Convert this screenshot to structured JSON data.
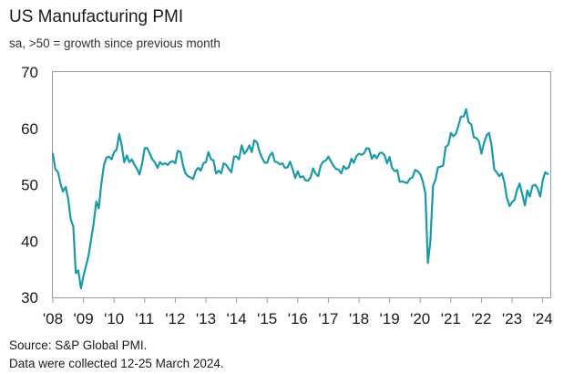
{
  "chart_data": {
    "type": "line",
    "title": "US Manufacturing PMI",
    "subtitle": "sa, >50 = growth since previous month",
    "xlabel": "",
    "ylabel": "",
    "ylim": [
      30,
      70
    ],
    "yticks": [
      30,
      40,
      50,
      60,
      70
    ],
    "xticks": [
      "'08",
      "'09",
      "'10",
      "'11",
      "'12",
      "'13",
      "'14",
      "'15",
      "'16",
      "'17",
      "'18",
      "'19",
      "'20",
      "'21",
      "'22",
      "'23",
      "'24"
    ],
    "xrange": [
      2008.0,
      2024.25
    ],
    "grid": false,
    "line_color": "#1a9aa8",
    "series": [
      {
        "name": "US Manufacturing PMI",
        "x": [
          2008.0,
          2008.08,
          2008.17,
          2008.25,
          2008.33,
          2008.42,
          2008.5,
          2008.58,
          2008.67,
          2008.75,
          2008.83,
          2008.92,
          2009.0,
          2009.08,
          2009.17,
          2009.25,
          2009.33,
          2009.42,
          2009.5,
          2009.58,
          2009.67,
          2009.75,
          2009.83,
          2009.92,
          2010.0,
          2010.08,
          2010.17,
          2010.25,
          2010.33,
          2010.42,
          2010.5,
          2010.58,
          2010.67,
          2010.75,
          2010.83,
          2010.92,
          2011.0,
          2011.08,
          2011.17,
          2011.25,
          2011.33,
          2011.42,
          2011.5,
          2011.58,
          2011.67,
          2011.75,
          2011.83,
          2011.92,
          2012.0,
          2012.08,
          2012.17,
          2012.25,
          2012.33,
          2012.42,
          2012.5,
          2012.58,
          2012.67,
          2012.75,
          2012.83,
          2012.92,
          2013.0,
          2013.08,
          2013.17,
          2013.25,
          2013.33,
          2013.42,
          2013.5,
          2013.58,
          2013.67,
          2013.75,
          2013.83,
          2013.92,
          2014.0,
          2014.08,
          2014.17,
          2014.25,
          2014.33,
          2014.42,
          2014.5,
          2014.58,
          2014.67,
          2014.75,
          2014.83,
          2014.92,
          2015.0,
          2015.08,
          2015.17,
          2015.25,
          2015.33,
          2015.42,
          2015.5,
          2015.58,
          2015.67,
          2015.75,
          2015.83,
          2015.92,
          2016.0,
          2016.08,
          2016.17,
          2016.25,
          2016.33,
          2016.42,
          2016.5,
          2016.58,
          2016.67,
          2016.75,
          2016.83,
          2016.92,
          2017.0,
          2017.08,
          2017.17,
          2017.25,
          2017.33,
          2017.42,
          2017.5,
          2017.58,
          2017.67,
          2017.75,
          2017.83,
          2017.92,
          2018.0,
          2018.08,
          2018.17,
          2018.25,
          2018.33,
          2018.42,
          2018.5,
          2018.58,
          2018.67,
          2018.75,
          2018.83,
          2018.92,
          2019.0,
          2019.08,
          2019.17,
          2019.25,
          2019.33,
          2019.42,
          2019.5,
          2019.58,
          2019.67,
          2019.75,
          2019.83,
          2019.92,
          2020.0,
          2020.08,
          2020.17,
          2020.25,
          2020.33,
          2020.42,
          2020.5,
          2020.58,
          2020.67,
          2020.75,
          2020.83,
          2020.92,
          2021.0,
          2021.08,
          2021.17,
          2021.25,
          2021.33,
          2021.42,
          2021.5,
          2021.58,
          2021.67,
          2021.75,
          2021.83,
          2021.92,
          2022.0,
          2022.08,
          2022.17,
          2022.25,
          2022.33,
          2022.42,
          2022.5,
          2022.58,
          2022.67,
          2022.75,
          2022.83,
          2022.92,
          2023.0,
          2023.08,
          2023.17,
          2023.25,
          2023.33,
          2023.42,
          2023.5,
          2023.58,
          2023.67,
          2023.75,
          2023.83,
          2023.92,
          2024.0,
          2024.08,
          2024.17
        ],
        "values": [
          55.5,
          52.8,
          52.2,
          50.2,
          48.8,
          49.6,
          47.5,
          44.0,
          42.5,
          34.3,
          34.8,
          31.6,
          33.8,
          35.5,
          37.5,
          40.3,
          43.0,
          47.0,
          45.8,
          50.0,
          53.5,
          54.8,
          55.0,
          54.5,
          55.8,
          56.2,
          59.0,
          57.0,
          54.0,
          55.2,
          54.0,
          54.5,
          53.5,
          52.8,
          51.8,
          53.8,
          56.5,
          56.5,
          55.5,
          54.5,
          54.0,
          53.0,
          54.0,
          53.6,
          53.8,
          53.5,
          54.0,
          54.2,
          53.8,
          56.0,
          55.8,
          53.5,
          52.0,
          51.5,
          51.3,
          51.0,
          52.5,
          53.0,
          52.5,
          53.8,
          54.0,
          55.8,
          54.5,
          54.3,
          52.0,
          52.5,
          52.0,
          53.8,
          53.5,
          52.8,
          52.2,
          55.0,
          55.0,
          54.5,
          57.0,
          55.5,
          56.0,
          57.0,
          55.8,
          57.9,
          57.5,
          55.9,
          54.8,
          53.9,
          53.9,
          55.1,
          55.7,
          54.1,
          54.0,
          53.6,
          53.8,
          53.0,
          53.1,
          54.1,
          52.8,
          51.2,
          52.4,
          51.3,
          51.5,
          50.8,
          50.7,
          51.3,
          52.9,
          52.0,
          51.5,
          53.4,
          54.1,
          54.3,
          55.0,
          54.2,
          53.3,
          52.8,
          52.7,
          52.0,
          53.3,
          52.8,
          53.1,
          54.6,
          53.9,
          55.1,
          55.5,
          55.3,
          55.6,
          56.5,
          56.4,
          54.6,
          55.3,
          54.7,
          55.6,
          55.7,
          55.3,
          53.8,
          54.9,
          53.0,
          52.4,
          52.6,
          50.5,
          50.6,
          50.4,
          50.3,
          51.1,
          51.3,
          52.6,
          52.4,
          51.9,
          50.7,
          48.5,
          36.1,
          39.8,
          49.8,
          50.9,
          53.1,
          53.2,
          53.4,
          56.7,
          57.1,
          59.2,
          58.6,
          59.1,
          60.5,
          62.1,
          62.1,
          63.4,
          61.1,
          60.7,
          58.4,
          58.3,
          57.7,
          55.5,
          57.3,
          58.8,
          59.2,
          57.0,
          52.7,
          52.2,
          51.5,
          52.0,
          50.4,
          47.7,
          46.2,
          46.9,
          47.3,
          49.2,
          50.2,
          48.4,
          46.3,
          49.0,
          47.9,
          49.8,
          50.0,
          49.4,
          47.9,
          50.7,
          52.2,
          51.9
        ]
      }
    ]
  },
  "footer": {
    "source": "Source: S&P Global PMI.",
    "note": "Data were collected 12-25 March 2024."
  }
}
